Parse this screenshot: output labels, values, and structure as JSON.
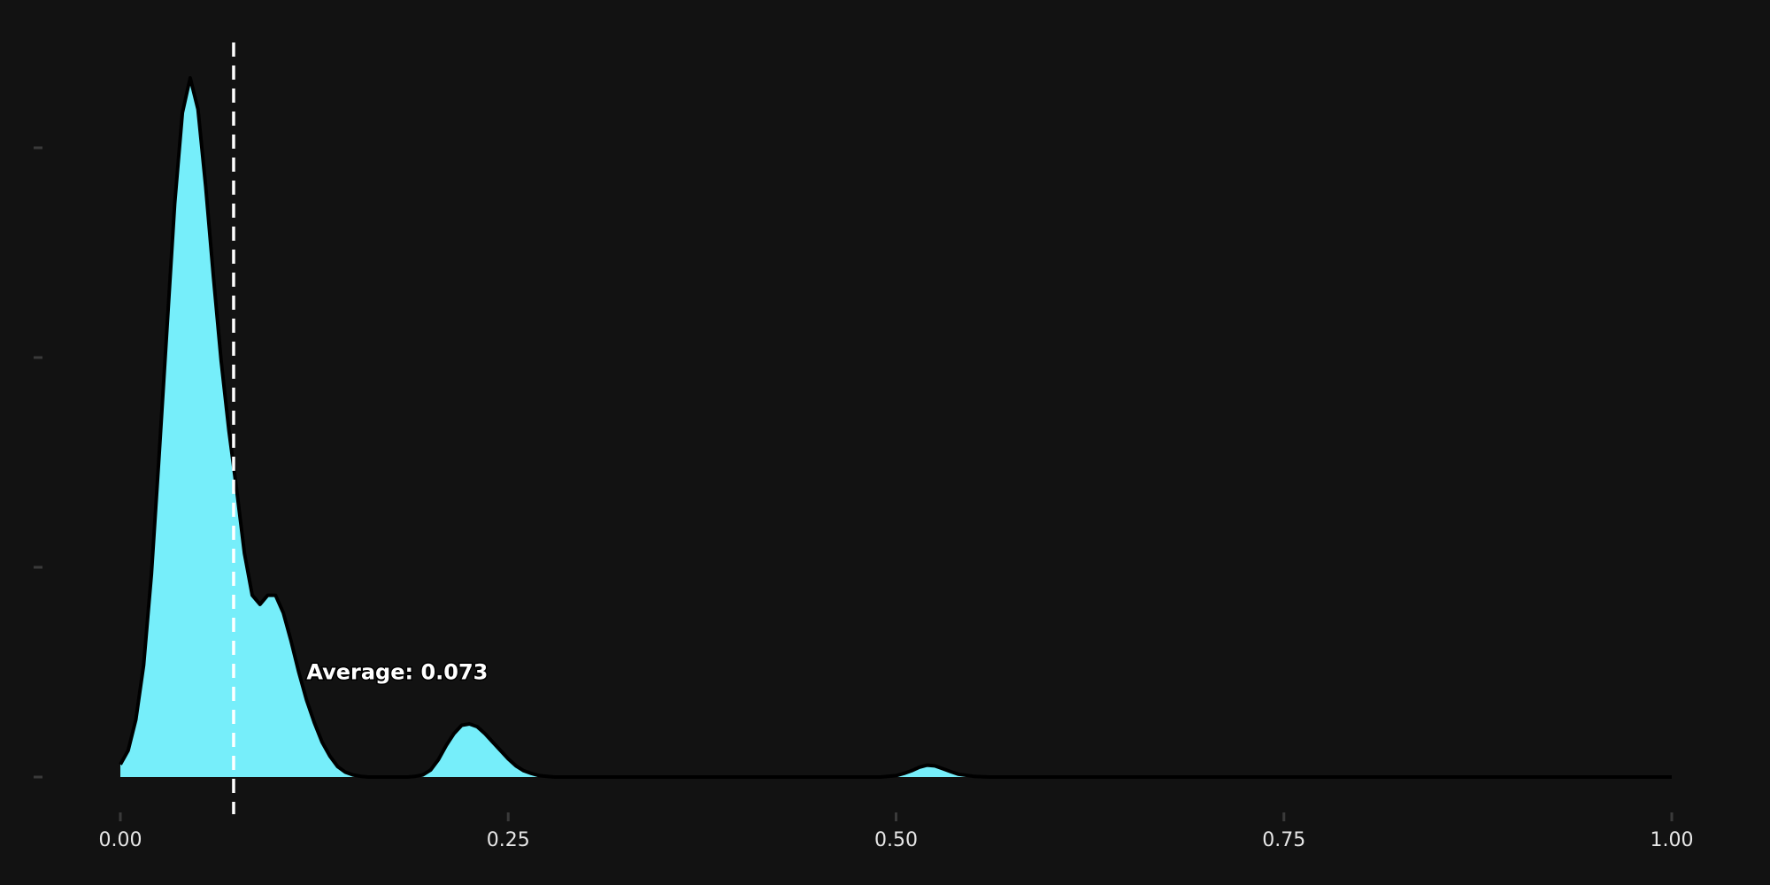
{
  "chart_data": {
    "type": "area",
    "title": "",
    "xlabel": "",
    "ylabel": "",
    "xlim": [
      0,
      1
    ],
    "ylim": [
      0,
      10
    ],
    "x_ticks": [
      0,
      0.25,
      0.5,
      0.75,
      1.0
    ],
    "x_tick_labels": [
      "0.00",
      "0.25",
      "0.50",
      "0.75",
      "1.00"
    ],
    "y_ticks": [
      0,
      3,
      6,
      9
    ],
    "y_tick_labels": [
      "",
      "",
      "",
      ""
    ],
    "grid": false,
    "fill_color": "#76EEFA",
    "line_color": "#000000",
    "background": "#121212",
    "series": [
      {
        "x": [
          0,
          0.005,
          0.01,
          0.015,
          0.02,
          0.025,
          0.03,
          0.035,
          0.04,
          0.045,
          0.05,
          0.055,
          0.06,
          0.065,
          0.07,
          0.075,
          0.08,
          0.085,
          0.09,
          0.095,
          0.1,
          0.105,
          0.11,
          0.115,
          0.12,
          0.125,
          0.13,
          0.135,
          0.14,
          0.145,
          0.15,
          0.155,
          0.16,
          0.165,
          0.17,
          0.175,
          0.18,
          0.185,
          0.19,
          0.195,
          0.2,
          0.205,
          0.21,
          0.215,
          0.22,
          0.225,
          0.23,
          0.235,
          0.24,
          0.245,
          0.25,
          0.255,
          0.26,
          0.265,
          0.27,
          0.275,
          0.28,
          0.285,
          0.29,
          0.3,
          0.35,
          0.4,
          0.45,
          0.48,
          0.49,
          0.5,
          0.505,
          0.51,
          0.515,
          0.52,
          0.525,
          0.53,
          0.535,
          0.54,
          0.55,
          0.56,
          0.6,
          0.7,
          0.8,
          0.9,
          1.0
        ],
        "y": [
          0.18,
          0.38,
          0.82,
          1.6,
          2.9,
          4.6,
          6.4,
          8.2,
          9.5,
          10.0,
          9.55,
          8.45,
          7.15,
          5.95,
          4.95,
          4.1,
          3.2,
          2.6,
          2.47,
          2.6,
          2.6,
          2.35,
          1.95,
          1.5,
          1.1,
          0.78,
          0.5,
          0.3,
          0.15,
          0.07,
          0.03,
          0.01,
          0.0,
          0.0,
          0.0,
          0.0,
          0.0,
          0.0,
          0.01,
          0.03,
          0.1,
          0.25,
          0.45,
          0.62,
          0.74,
          0.76,
          0.72,
          0.62,
          0.5,
          0.38,
          0.26,
          0.16,
          0.09,
          0.05,
          0.02,
          0.01,
          0.0,
          0.0,
          0.0,
          0.0,
          0.0,
          0.0,
          0.0,
          0.0,
          0.0,
          0.02,
          0.05,
          0.09,
          0.14,
          0.17,
          0.16,
          0.12,
          0.08,
          0.04,
          0.01,
          0.0,
          0.0,
          0.0,
          0.0,
          0.0,
          0.0
        ]
      }
    ],
    "reference_line": {
      "x": 0.073,
      "style": "dashed",
      "color": "#ffffff"
    },
    "annotation": {
      "text": "Average: 0.073",
      "x": 0.12,
      "y": 1.5
    }
  }
}
